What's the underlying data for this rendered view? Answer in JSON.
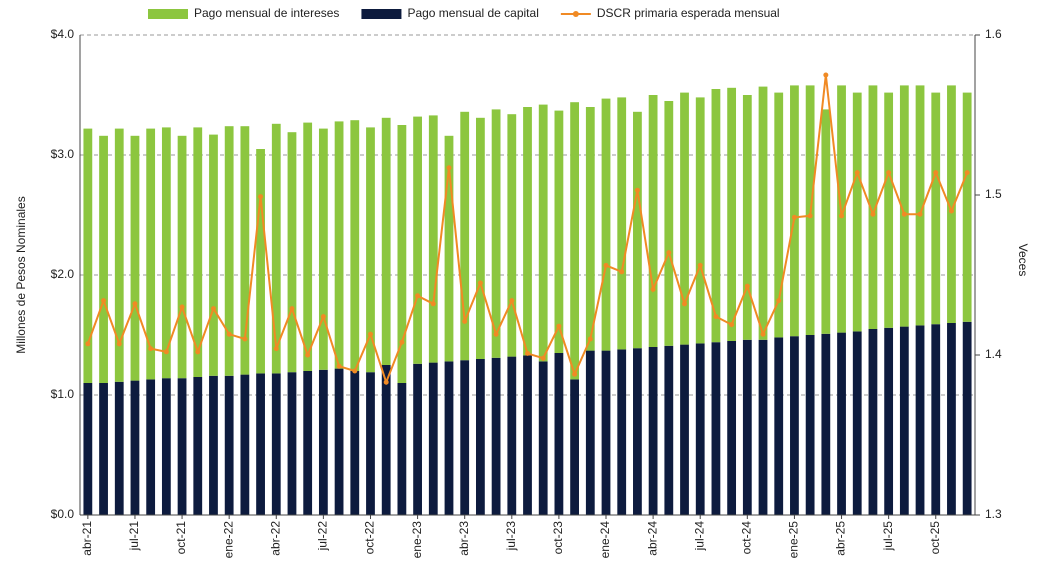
{
  "chart_data": {
    "type": "bar-line",
    "categories": [
      "abr-21",
      null,
      null,
      "jul-21",
      null,
      null,
      "oct-21",
      null,
      null,
      "ene-22",
      null,
      null,
      "abr-22",
      null,
      null,
      "jul-22",
      null,
      null,
      "oct-22",
      null,
      null,
      "ene-23",
      null,
      null,
      "abr-23",
      null,
      null,
      "jul-23",
      null,
      null,
      "oct-23",
      null,
      null,
      "ene-24",
      null,
      null,
      "abr-24",
      null,
      null,
      "jul-24",
      null,
      null,
      "oct-24",
      null,
      null,
      "ene-25",
      null,
      null,
      "abr-25",
      null,
      null,
      "jul-25",
      null,
      null,
      "oct-25",
      null,
      null
    ],
    "series": [
      {
        "name": "Pago mensual de intereses",
        "color": "#8cc63f",
        "stack": true,
        "values": [
          2.12,
          2.06,
          2.11,
          2.04,
          2.09,
          2.09,
          2.02,
          2.08,
          2.01,
          2.08,
          2.07,
          1.87,
          2.08,
          2.0,
          2.07,
          2.01,
          2.06,
          2.09,
          2.04,
          2.06,
          2.15,
          2.06,
          2.06,
          1.88,
          2.07,
          2.01,
          2.07,
          2.02,
          2.07,
          2.14,
          2.02,
          2.31,
          2.03,
          2.1,
          2.1,
          1.97,
          2.1,
          2.04,
          2.1,
          2.05,
          2.11,
          2.11,
          2.04,
          2.11,
          2.04,
          2.09,
          2.08,
          1.87,
          2.06,
          1.99,
          2.03,
          1.96,
          2.01,
          2.0,
          1.93,
          1.98,
          1.91
        ]
      },
      {
        "name": "Pago mensual de capital",
        "color": "#0d1b3e",
        "stack": true,
        "values": [
          1.1,
          1.1,
          1.11,
          1.12,
          1.13,
          1.14,
          1.14,
          1.15,
          1.16,
          1.16,
          1.17,
          1.18,
          1.18,
          1.19,
          1.2,
          1.21,
          1.22,
          1.2,
          1.19,
          1.25,
          1.1,
          1.26,
          1.27,
          1.28,
          1.29,
          1.3,
          1.31,
          1.32,
          1.33,
          1.28,
          1.35,
          1.13,
          1.37,
          1.37,
          1.38,
          1.39,
          1.4,
          1.41,
          1.42,
          1.43,
          1.44,
          1.45,
          1.46,
          1.46,
          1.48,
          1.49,
          1.5,
          1.51,
          1.52,
          1.53,
          1.55,
          1.56,
          1.57,
          1.58,
          1.59,
          1.6,
          1.61
        ]
      },
      {
        "name": "DSCR primaria esperada mensual",
        "color": "#f08a24",
        "axis": "y2",
        "kind": "line",
        "values": [
          1.407,
          1.434,
          1.407,
          1.432,
          1.404,
          1.402,
          1.43,
          1.402,
          1.429,
          1.413,
          1.41,
          1.499,
          1.404,
          1.429,
          1.4,
          1.424,
          1.393,
          1.39,
          1.413,
          1.383,
          1.408,
          1.437,
          1.432,
          1.517,
          1.421,
          1.445,
          1.413,
          1.434,
          1.401,
          1.398,
          1.418,
          1.388,
          1.41,
          1.456,
          1.452,
          1.503,
          1.441,
          1.464,
          1.432,
          1.456,
          1.424,
          1.419,
          1.443,
          1.413,
          1.434,
          1.486,
          1.487,
          1.575,
          1.487,
          1.514,
          1.488,
          1.514,
          1.488,
          1.488,
          1.514,
          1.49,
          1.514
        ]
      }
    ],
    "y_label": "Millones de Pesos Nominales",
    "y2_label": "Veces",
    "ylim": [
      0,
      4
    ],
    "yticks": [
      {
        "value": 0,
        "label": "$0.0"
      },
      {
        "value": 1,
        "label": "$1.0"
      },
      {
        "value": 2,
        "label": "$2.0"
      },
      {
        "value": 3,
        "label": "$3.0"
      },
      {
        "value": 4,
        "label": "$4.0"
      }
    ],
    "y2lim": [
      1.3,
      1.6
    ],
    "y2ticks": [
      1.3,
      1.4,
      1.5,
      1.6
    ],
    "grid": true,
    "legend": "top"
  }
}
